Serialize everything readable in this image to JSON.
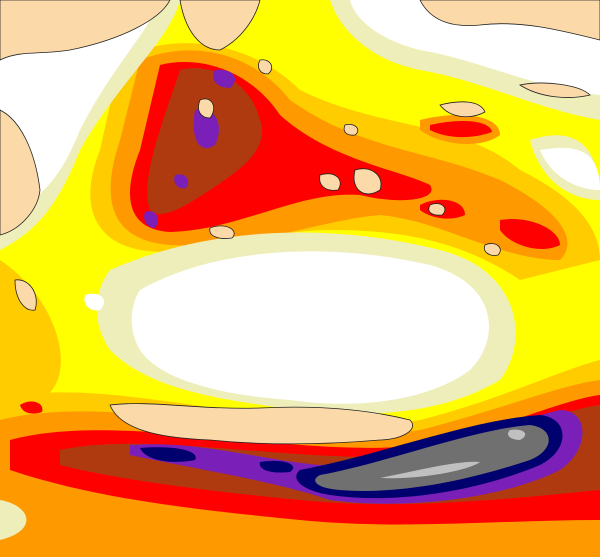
{
  "map": {
    "colors": {
      "land": "#fcd9a8",
      "calm": "#ffffff",
      "pale": "#eeeebb",
      "yellow": "#ffff00",
      "gold": "#ffcc00",
      "orange": "#ff9900",
      "red": "#ff0000",
      "brown": "#b03a10",
      "purple": "#7a1fb8",
      "navy": "#00006e",
      "gray": "#707070",
      "lightgray": "#c0c0c0",
      "coast": "#222222"
    }
  }
}
